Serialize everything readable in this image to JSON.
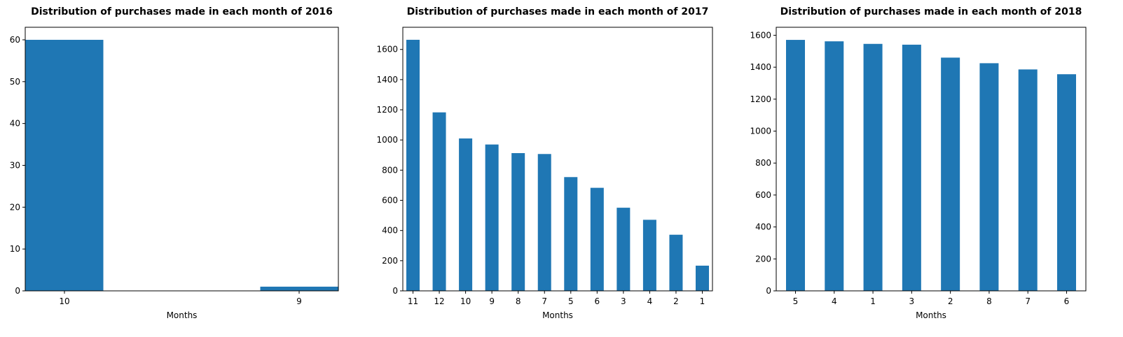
{
  "chart_data": [
    {
      "type": "bar",
      "title": "Distribution of purchases made in each month of 2016",
      "xlabel": "Months",
      "ylabel": "",
      "categories": [
        "10",
        "9"
      ],
      "values": [
        60,
        1
      ],
      "ylim": [
        0,
        63
      ],
      "yticks": [
        0,
        10,
        20,
        30,
        40,
        50,
        60
      ],
      "bar_color": "#1f77b4",
      "grid": false,
      "legend": "none"
    },
    {
      "type": "bar",
      "title": "Distribution of purchases made in each month of 2017",
      "xlabel": "Months",
      "ylabel": "",
      "categories": [
        "11",
        "12",
        "10",
        "9",
        "8",
        "7",
        "5",
        "6",
        "3",
        "4",
        "2",
        "1"
      ],
      "values": [
        1664,
        1183,
        1010,
        970,
        913,
        907,
        754,
        683,
        551,
        471,
        372,
        167
      ],
      "ylim": [
        0,
        1747
      ],
      "yticks": [
        0,
        200,
        400,
        600,
        800,
        1000,
        1200,
        1400,
        1600
      ],
      "bar_color": "#1f77b4",
      "grid": false,
      "legend": "none"
    },
    {
      "type": "bar",
      "title": "Distribution of purchases made in each month of 2018",
      "xlabel": "Months",
      "ylabel": "",
      "categories": [
        "5",
        "4",
        "1",
        "3",
        "2",
        "8",
        "7",
        "6"
      ],
      "values": [
        1571,
        1562,
        1546,
        1541,
        1460,
        1425,
        1386,
        1356
      ],
      "ylim": [
        0,
        1650
      ],
      "yticks": [
        0,
        200,
        400,
        600,
        800,
        1000,
        1200,
        1400,
        1600
      ],
      "bar_color": "#1f77b4",
      "grid": false,
      "legend": "none"
    }
  ]
}
